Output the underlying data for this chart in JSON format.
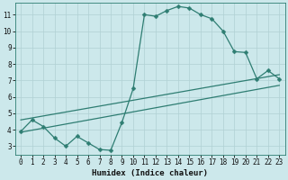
{
  "title": "",
  "xlabel": "Humidex (Indice chaleur)",
  "bg_color": "#cce8eb",
  "line_color": "#2e7d72",
  "grid_color": "#b0d0d4",
  "spine_color": "#2e7d72",
  "xlim": [
    -0.5,
    23.5
  ],
  "ylim": [
    2.5,
    11.7
  ],
  "xticks": [
    0,
    1,
    2,
    3,
    4,
    5,
    6,
    7,
    8,
    9,
    10,
    11,
    12,
    13,
    14,
    15,
    16,
    17,
    18,
    19,
    20,
    21,
    22,
    23
  ],
  "yticks": [
    3,
    4,
    5,
    6,
    7,
    8,
    9,
    10,
    11
  ],
  "curve_x": [
    0,
    1,
    2,
    3,
    4,
    5,
    6,
    7,
    8,
    9,
    10,
    11,
    12,
    13,
    14,
    15,
    16,
    17,
    18,
    19,
    20,
    21,
    22,
    23
  ],
  "curve_y": [
    3.9,
    4.6,
    4.2,
    3.5,
    3.0,
    3.6,
    3.2,
    2.8,
    2.75,
    4.45,
    6.5,
    11.0,
    10.9,
    11.25,
    11.5,
    11.4,
    11.0,
    10.75,
    10.0,
    8.75,
    8.7,
    7.1,
    7.6,
    7.1
  ],
  "line1_x": [
    0,
    23
  ],
  "line1_y": [
    3.85,
    6.7
  ],
  "line2_x": [
    0,
    23
  ],
  "line2_y": [
    4.6,
    7.35
  ],
  "markersize": 2.5,
  "linewidth": 0.9,
  "tick_fontsize": 5.5,
  "xlabel_fontsize": 6.5
}
